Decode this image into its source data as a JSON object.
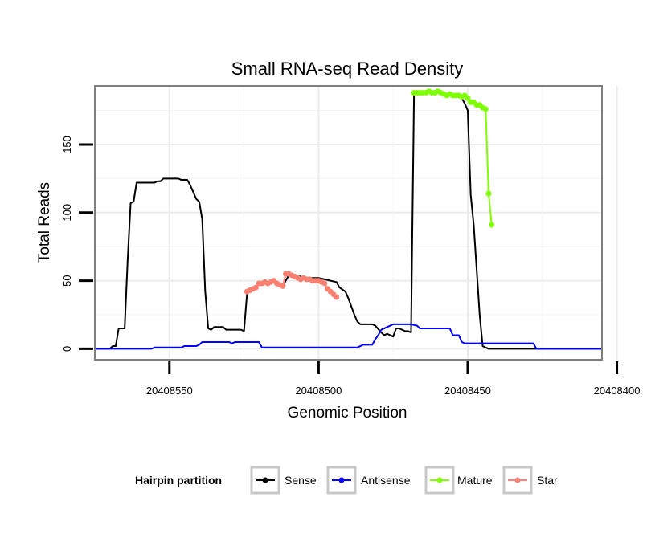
{
  "chart_data": {
    "type": "line",
    "title": "Small RNA-seq Read Density",
    "xlabel": "Genomic Position",
    "ylabel": "Total Reads",
    "x_reversed": true,
    "xlim": [
      20408575,
      20408405
    ],
    "ylim": [
      -8,
      193
    ],
    "x_ticks": [
      20408550,
      20408500,
      20408450,
      20408400
    ],
    "y_ticks": [
      0,
      50,
      100,
      150
    ],
    "grid": true,
    "legend": {
      "title": "Hairpin partition",
      "position": "bottom",
      "entries": [
        {
          "label": "Sense",
          "color": "#000000"
        },
        {
          "label": "Antisense",
          "color": "#0000ff"
        },
        {
          "label": "Mature",
          "color": "#7fff00"
        },
        {
          "label": "Star",
          "color": "#fa8072"
        }
      ]
    },
    "series": [
      {
        "name": "Sense",
        "color": "#000000",
        "points": [
          [
            20408575,
            0
          ],
          [
            20408570,
            0
          ],
          [
            20408569,
            2
          ],
          [
            20408568,
            2
          ],
          [
            20408567,
            15
          ],
          [
            20408565,
            15
          ],
          [
            20408564,
            65
          ],
          [
            20408563,
            107
          ],
          [
            20408562,
            108
          ],
          [
            20408561,
            122
          ],
          [
            20408559,
            122
          ],
          [
            20408555,
            122
          ],
          [
            20408554,
            123
          ],
          [
            20408553,
            123
          ],
          [
            20408552,
            125
          ],
          [
            20408547,
            125
          ],
          [
            20408546,
            124
          ],
          [
            20408544,
            124
          ],
          [
            20408543,
            120
          ],
          [
            20408542,
            115
          ],
          [
            20408541,
            110
          ],
          [
            20408540,
            108
          ],
          [
            20408539,
            95
          ],
          [
            20408538,
            42
          ],
          [
            20408537,
            15
          ],
          [
            20408536,
            14
          ],
          [
            20408535,
            16
          ],
          [
            20408532,
            16
          ],
          [
            20408531,
            14
          ],
          [
            20408526,
            14
          ],
          [
            20408525,
            13
          ],
          [
            20408524,
            40
          ],
          [
            20408523,
            43
          ],
          [
            20408520,
            47
          ],
          [
            20408518,
            48
          ],
          [
            20408516,
            50
          ],
          [
            20408514,
            48
          ],
          [
            20408512,
            46
          ],
          [
            20408511,
            50
          ],
          [
            20408510,
            54
          ],
          [
            20408508,
            54
          ],
          [
            20408506,
            53
          ],
          [
            20408504,
            52
          ],
          [
            20408500,
            52
          ],
          [
            20408498,
            51
          ],
          [
            20408496,
            50
          ],
          [
            20408494,
            49
          ],
          [
            20408493,
            45
          ],
          [
            20408491,
            42
          ],
          [
            20408490,
            37
          ],
          [
            20408488,
            25
          ],
          [
            20408487,
            20
          ],
          [
            20408486,
            18
          ],
          [
            20408482,
            18
          ],
          [
            20408481,
            17
          ],
          [
            20408479,
            12
          ],
          [
            20408478,
            10
          ],
          [
            20408477,
            11
          ],
          [
            20408475,
            9
          ],
          [
            20408474,
            15
          ],
          [
            20408473,
            15
          ],
          [
            20408471,
            13
          ],
          [
            20408470,
            13
          ],
          [
            20408469,
            12
          ],
          [
            20408468,
            188
          ],
          [
            20408466,
            188
          ],
          [
            20408460,
            188
          ],
          [
            20408458,
            187
          ],
          [
            20408455,
            186
          ],
          [
            20408453,
            185
          ],
          [
            20408452,
            184
          ],
          [
            20408451,
            180
          ],
          [
            20408450,
            175
          ],
          [
            20408449,
            113
          ],
          [
            20408448,
            91
          ],
          [
            20408446,
            25
          ],
          [
            20408445,
            2
          ],
          [
            20408444,
            1
          ],
          [
            20408443,
            0
          ],
          [
            20408405,
            0
          ]
        ]
      },
      {
        "name": "Antisense",
        "color": "#0000ff",
        "points": [
          [
            20408575,
            0
          ],
          [
            20408556,
            0
          ],
          [
            20408555,
            1
          ],
          [
            20408546,
            1
          ],
          [
            20408545,
            2
          ],
          [
            20408541,
            2
          ],
          [
            20408540,
            3
          ],
          [
            20408539,
            5
          ],
          [
            20408530,
            5
          ],
          [
            20408529,
            4
          ],
          [
            20408528,
            5
          ],
          [
            20408520,
            5
          ],
          [
            20408519,
            1
          ],
          [
            20408487,
            1
          ],
          [
            20408486,
            2
          ],
          [
            20408485,
            3
          ],
          [
            20408482,
            3
          ],
          [
            20408481,
            7
          ],
          [
            20408480,
            10
          ],
          [
            20408479,
            14
          ],
          [
            20408477,
            16
          ],
          [
            20408475,
            18
          ],
          [
            20408469,
            18
          ],
          [
            20408467,
            17
          ],
          [
            20408466,
            15
          ],
          [
            20408456,
            15
          ],
          [
            20408455,
            10
          ],
          [
            20408453,
            10
          ],
          [
            20408452,
            5
          ],
          [
            20408451,
            4
          ],
          [
            20408428,
            4
          ],
          [
            20408427,
            0
          ],
          [
            20408405,
            0
          ]
        ]
      },
      {
        "name": "Mature",
        "color": "#7fff00",
        "points": [
          [
            20408468,
            188
          ],
          [
            20408467,
            188
          ],
          [
            20408466,
            188
          ],
          [
            20408465,
            188
          ],
          [
            20408464,
            188
          ],
          [
            20408463,
            189
          ],
          [
            20408462,
            188
          ],
          [
            20408461,
            188
          ],
          [
            20408460,
            189
          ],
          [
            20408459,
            188
          ],
          [
            20408458,
            187
          ],
          [
            20408457,
            186
          ],
          [
            20408456,
            187
          ],
          [
            20408455,
            186
          ],
          [
            20408454,
            186
          ],
          [
            20408453,
            186
          ],
          [
            20408452,
            185
          ],
          [
            20408451,
            186
          ],
          [
            20408450,
            184
          ],
          [
            20408449,
            181
          ],
          [
            20408448,
            181
          ],
          [
            20408447,
            179
          ],
          [
            20408446,
            179
          ],
          [
            20408445,
            177
          ],
          [
            20408444,
            176
          ],
          [
            20408443,
            114
          ],
          [
            20408442,
            91
          ]
        ]
      },
      {
        "name": "Star",
        "color": "#fa8072",
        "points": [
          [
            20408524,
            42
          ],
          [
            20408523,
            43
          ],
          [
            20408522,
            44
          ],
          [
            20408521,
            45
          ],
          [
            20408520,
            48
          ],
          [
            20408519,
            48
          ],
          [
            20408518,
            49
          ],
          [
            20408517,
            48
          ],
          [
            20408516,
            49
          ],
          [
            20408515,
            50
          ],
          [
            20408514,
            48
          ],
          [
            20408513,
            47
          ],
          [
            20408512,
            46
          ],
          [
            20408511,
            55
          ],
          [
            20408510,
            55
          ],
          [
            20408509,
            54
          ],
          [
            20408508,
            53
          ],
          [
            20408507,
            52
          ],
          [
            20408506,
            51
          ],
          [
            20408505,
            52
          ],
          [
            20408504,
            51
          ],
          [
            20408503,
            51
          ],
          [
            20408502,
            50
          ],
          [
            20408501,
            50
          ],
          [
            20408500,
            50
          ],
          [
            20408499,
            49
          ],
          [
            20408498,
            48
          ],
          [
            20408497,
            44
          ],
          [
            20408496,
            42
          ],
          [
            20408495,
            40
          ],
          [
            20408494,
            38
          ]
        ]
      }
    ]
  }
}
